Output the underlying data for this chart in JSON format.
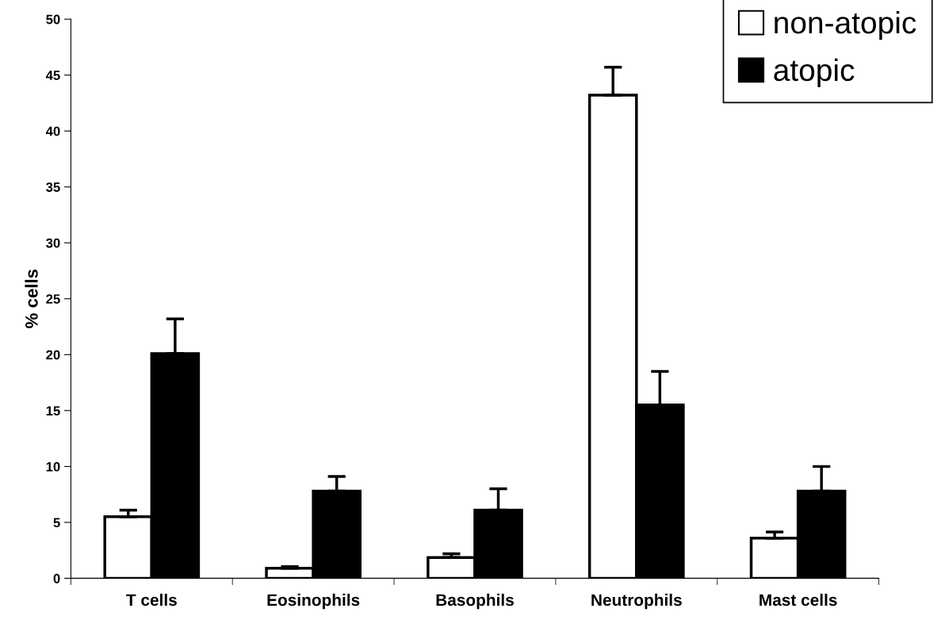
{
  "chart_data": {
    "type": "bar",
    "ylabel": "% cells",
    "categories": [
      "T cells",
      "Eosinophils",
      "Basophils",
      "Neutrophils",
      "Mast cells"
    ],
    "series": [
      {
        "name": "non-atopic",
        "color": "#ffffff",
        "values": [
          5.5,
          0.9,
          1.85,
          43.2,
          3.6
        ],
        "errors": [
          [
            5.5,
            6.1
          ],
          [
            0.9,
            1.05
          ],
          [
            1.85,
            2.2
          ],
          [
            43.2,
            45.7
          ],
          [
            3.6,
            4.15
          ]
        ]
      },
      {
        "name": "atopic",
        "color": "#000000",
        "values": [
          20.1,
          7.8,
          6.1,
          15.5,
          7.8
        ],
        "errors": [
          [
            20.1,
            23.2
          ],
          [
            7.8,
            9.1
          ],
          [
            6.1,
            8.0
          ],
          [
            15.5,
            18.5
          ],
          [
            7.8,
            10.0
          ]
        ]
      }
    ],
    "ylim": [
      0,
      50
    ],
    "yticks": [
      0,
      5,
      10,
      15,
      20,
      25,
      30,
      35,
      40,
      45,
      50
    ],
    "legend": "top right",
    "grid": false
  }
}
